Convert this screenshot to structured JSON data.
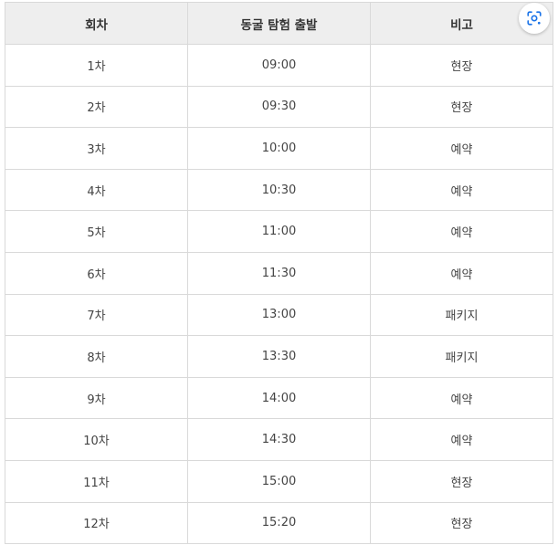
{
  "table": {
    "headers": [
      "회차",
      "동굴 탐험 출발",
      "비고"
    ],
    "rows": [
      {
        "round": "1차",
        "time": "09:00",
        "note": "현장"
      },
      {
        "round": "2차",
        "time": "09:30",
        "note": "현장"
      },
      {
        "round": "3차",
        "time": "10:00",
        "note": "예약"
      },
      {
        "round": "4차",
        "time": "10:30",
        "note": "예약"
      },
      {
        "round": "5차",
        "time": "11:00",
        "note": "예약"
      },
      {
        "round": "6차",
        "time": "11:30",
        "note": "예약"
      },
      {
        "round": "7차",
        "time": "13:00",
        "note": "패키지"
      },
      {
        "round": "8차",
        "time": "13:30",
        "note": "패키지"
      },
      {
        "round": "9차",
        "time": "14:00",
        "note": "예약"
      },
      {
        "round": "10차",
        "time": "14:30",
        "note": "예약"
      },
      {
        "round": "11차",
        "time": "15:00",
        "note": "현장"
      },
      {
        "round": "12차",
        "time": "15:20",
        "note": "현장"
      }
    ]
  },
  "lens_button": {
    "icon": "visual-search-icon",
    "accent_color": "#1a73e8"
  }
}
